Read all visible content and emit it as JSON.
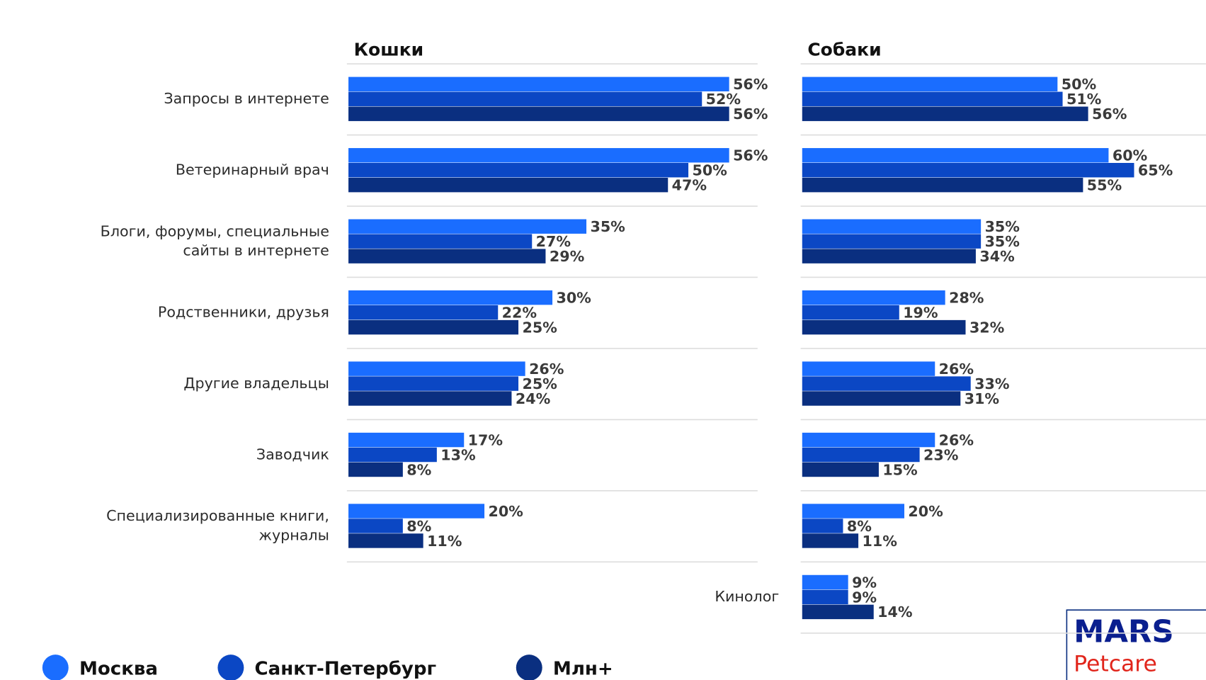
{
  "chart_data": [
    {
      "type": "hbar",
      "title": "Кошки",
      "categories": [
        "Запросы в интернете",
        "Ветеринарный врач",
        "Блоги, форумы, специальные\nсайты в интернете",
        "Родственники, друзья",
        "Другие владельцы",
        "Заводчик",
        "Специализированные книги,\nжурналы"
      ],
      "series": [
        {
          "name": "Москва",
          "color": "#1a6dff",
          "values": [
            56,
            56,
            35,
            30,
            26,
            17,
            20
          ],
          "value_labels": [
            "56%",
            "56%",
            "35%",
            "30%",
            "26%",
            "17%",
            "20%"
          ]
        },
        {
          "name": "Санкт-Петербург",
          "color": "#0b47c4",
          "values": [
            52,
            50,
            27,
            22,
            25,
            13,
            8
          ],
          "value_labels": [
            "52%",
            "50%",
            "27%",
            "22%",
            "25%",
            "13%",
            "8%"
          ]
        },
        {
          "name": "Млн+",
          "color": "#0a2f80",
          "values": [
            56,
            47,
            29,
            25,
            24,
            8,
            11
          ],
          "value_labels": [
            "56%",
            "47%",
            "29%",
            "25%",
            "24%",
            "8%",
            "11%"
          ]
        }
      ]
    },
    {
      "type": "hbar",
      "title": "Собаки",
      "categories": [
        null,
        null,
        null,
        null,
        null,
        null,
        null,
        "Кинолог"
      ],
      "series": [
        {
          "color": "#1a6dff",
          "values": [
            50,
            60,
            35,
            28,
            26,
            26,
            20,
            9
          ],
          "value_labels": [
            "50%",
            "60%",
            "35%",
            "28%",
            "26%",
            "26%",
            "20%",
            "9%"
          ]
        },
        {
          "color": "#0b47c4",
          "values": [
            51,
            65,
            35,
            19,
            33,
            23,
            8,
            9
          ],
          "value_labels": [
            "51%",
            "65%",
            "35%",
            "19%",
            "33%",
            "23%",
            "8%",
            "9%"
          ]
        },
        {
          "color": "#0a2f80",
          "values": [
            56,
            55,
            34,
            32,
            31,
            15,
            11,
            14
          ],
          "value_labels": [
            "56%",
            "55%",
            "34%",
            "32%",
            "31%",
            "15%",
            "11%",
            "14%"
          ]
        }
      ]
    }
  ],
  "logo": {
    "brand": "MARS",
    "product": "Petcare"
  }
}
